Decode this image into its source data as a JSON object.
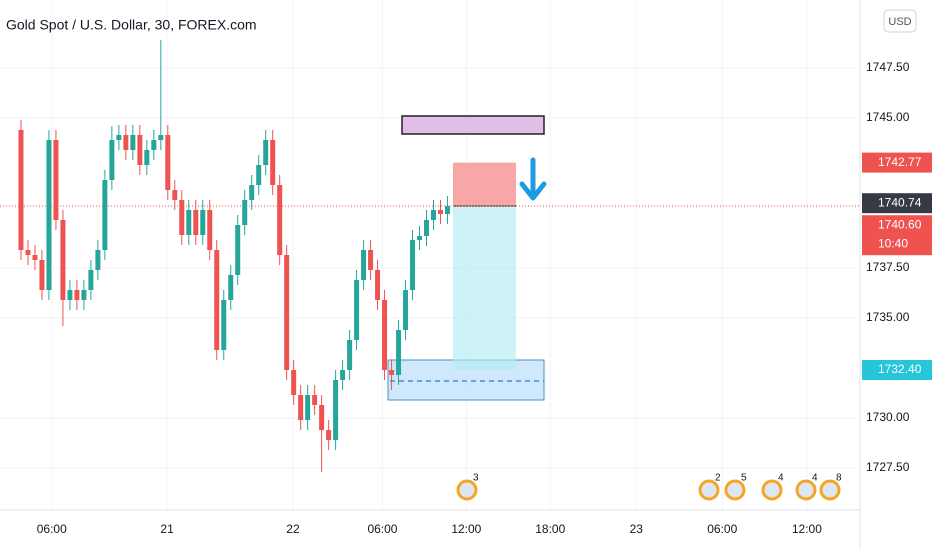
{
  "chart_data": {
    "type": "candlestick",
    "title": "Gold Spot / U.S. Dollar, 30, FOREX.com",
    "currency": "USD",
    "up_color": "#26a69a",
    "down_color": "#ef5350",
    "open": [
      1744.4,
      1738.4,
      1738.15,
      1737.9,
      1736.4,
      1743.9,
      1739.9,
      1735.9,
      1736.4,
      1735.9,
      1736.4,
      1737.4,
      1738.4,
      1741.9,
      1743.9,
      1744.15,
      1743.4,
      1744.15,
      1742.65,
      1743.4,
      1743.9,
      1744.15,
      1741.4,
      1740.9,
      1739.15,
      1740.4,
      1739.15,
      1740.4,
      1738.4,
      1733.4,
      1735.9,
      1737.15,
      1739.65,
      1740.9,
      1741.65,
      1742.65,
      1743.9,
      1741.65,
      1738.15,
      1732.4,
      1731.15,
      1729.9,
      1731.15,
      1730.65,
      1729.4,
      1728.9,
      1731.9,
      1732.4,
      1733.9,
      1736.9,
      1738.4,
      1737.4,
      1735.9,
      1732.4,
      1732.15,
      1734.4,
      1736.4,
      1738.9,
      1739.1,
      1739.9,
      1740.4,
      1740.2
    ],
    "high": [
      1744.9,
      1738.9,
      1738.65,
      1738.4,
      1744.4,
      1744.4,
      1740.4,
      1736.9,
      1736.9,
      1736.9,
      1737.9,
      1738.9,
      1742.4,
      1744.6,
      1744.65,
      1744.65,
      1744.65,
      1744.65,
      1743.9,
      1744.4,
      1748.9,
      1744.65,
      1741.9,
      1741.4,
      1740.9,
      1740.9,
      1740.9,
      1740.9,
      1738.9,
      1736.4,
      1737.65,
      1740.15,
      1741.4,
      1742.15,
      1743.15,
      1744.4,
      1744.4,
      1742.15,
      1738.65,
      1732.9,
      1731.65,
      1731.65,
      1731.65,
      1731.15,
      1729.9,
      1732.4,
      1732.9,
      1734.4,
      1737.4,
      1738.9,
      1738.9,
      1737.9,
      1736.4,
      1732.9,
      1734.9,
      1736.9,
      1739.4,
      1739.6,
      1740.4,
      1740.9,
      1740.9,
      1741.1
    ],
    "low": [
      1737.9,
      1737.65,
      1737.4,
      1735.9,
      1735.9,
      1739.4,
      1734.6,
      1735.4,
      1735.4,
      1735.4,
      1735.9,
      1736.9,
      1737.9,
      1741.4,
      1743.4,
      1742.9,
      1742.9,
      1742.15,
      1742.15,
      1742.9,
      1743.4,
      1740.9,
      1740.4,
      1738.65,
      1738.65,
      1738.65,
      1738.65,
      1737.9,
      1732.9,
      1732.9,
      1735.4,
      1736.65,
      1739.15,
      1740.4,
      1741.15,
      1742.15,
      1741.15,
      1737.65,
      1731.9,
      1730.65,
      1729.4,
      1729.4,
      1730.15,
      1727.3,
      1728.4,
      1728.4,
      1731.4,
      1731.9,
      1733.4,
      1736.4,
      1736.9,
      1735.4,
      1731.9,
      1731.4,
      1731.65,
      1733.9,
      1735.9,
      1738.4,
      1738.6,
      1739.4,
      1739.7,
      1739.7
    ],
    "close": [
      1738.4,
      1738.15,
      1737.9,
      1736.4,
      1743.9,
      1739.9,
      1735.9,
      1736.4,
      1735.9,
      1736.4,
      1737.4,
      1738.4,
      1741.9,
      1743.9,
      1744.15,
      1743.4,
      1744.15,
      1742.65,
      1743.4,
      1743.9,
      1744.15,
      1741.4,
      1740.9,
      1739.15,
      1740.4,
      1739.15,
      1740.4,
      1738.4,
      1733.4,
      1735.9,
      1737.15,
      1739.65,
      1740.9,
      1741.65,
      1742.65,
      1743.9,
      1741.65,
      1738.15,
      1732.4,
      1731.15,
      1729.9,
      1731.15,
      1730.65,
      1729.4,
      1728.9,
      1731.9,
      1732.4,
      1733.9,
      1736.9,
      1738.4,
      1737.4,
      1735.9,
      1732.4,
      1732.15,
      1734.4,
      1736.4,
      1738.9,
      1739.1,
      1739.9,
      1740.4,
      1740.2,
      1740.6
    ],
    "xlim": [
      -3,
      120
    ],
    "xticks": [
      {
        "value": 4.4,
        "label": "06:00"
      },
      {
        "value": 20.9,
        "label": "21"
      },
      {
        "value": 38.9,
        "label": "22"
      },
      {
        "value": 51.7,
        "label": "06:00"
      },
      {
        "value": 63.7,
        "label": "12:00"
      },
      {
        "value": 75.7,
        "label": "18:00"
      },
      {
        "value": 88,
        "label": "23"
      },
      {
        "value": 100.3,
        "label": "06:00"
      },
      {
        "value": 112.4,
        "label": "12:00"
      }
    ],
    "ylim": [
      1725.4,
      1750.9
    ],
    "yticks": [
      {
        "value": 1727.5,
        "label": "1727.50"
      },
      {
        "value": 1730,
        "label": "1730.00"
      },
      {
        "value": 1735,
        "label": "1735.00"
      },
      {
        "value": 1737.5,
        "label": "1737.50"
      },
      {
        "value": 1745,
        "label": "1745.00"
      },
      {
        "value": 1747.5,
        "label": "1747.50"
      }
    ],
    "grid": true,
    "price_tags": [
      {
        "value": 1742.77,
        "label": "1742.77",
        "color": "#ef5350"
      },
      {
        "value": 1740.74,
        "label": "1740.74",
        "color": "#363a45"
      },
      {
        "value": 1740.6,
        "label": "1740.60",
        "color": "#ef5350"
      },
      {
        "value": 1732.4,
        "label": "1732.40",
        "color": "#26c6da"
      }
    ],
    "countdown": "10:40",
    "event_counts": [
      3,
      2,
      5,
      4,
      4,
      8
    ]
  }
}
